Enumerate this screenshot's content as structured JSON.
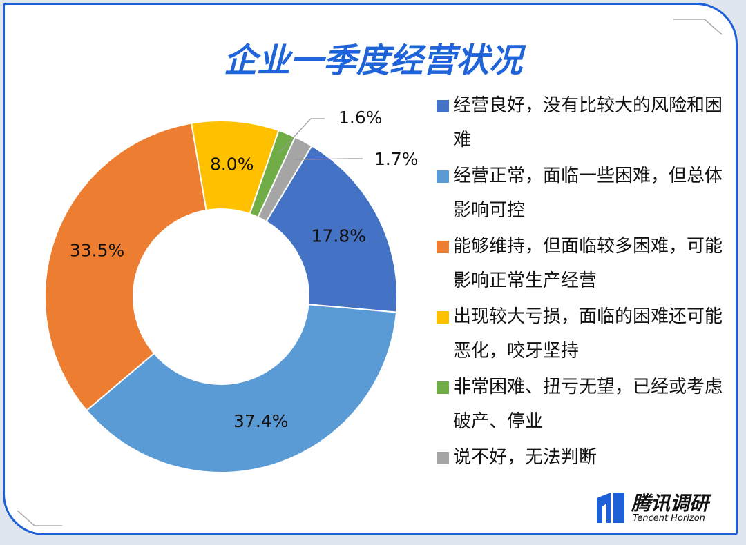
{
  "chart_data": {
    "type": "donut",
    "title": "企业一季度经营状况",
    "categories": [
      "经营良好，没有比较大的风险和困难",
      "经营正常，面临一些困难，但总体影响可控",
      "能够维持，但面临较多困难，可能影响正常生产经营",
      "出现较大亏损，面临的困难还可能恶化，咬牙坚持",
      "非常困难、扭亏无望，已经或考虑破产、停业",
      "说不好，无法判断"
    ],
    "values": [
      17.8,
      37.4,
      33.5,
      8.0,
      1.6,
      1.7
    ],
    "value_labels": [
      "17.8%",
      "37.4%",
      "33.5%",
      "8.0%",
      "1.6%",
      "1.7%"
    ],
    "colors": [
      "#4472c4",
      "#5b9bd5",
      "#ed7d31",
      "#ffc000",
      "#70ad47",
      "#a5a5a5"
    ],
    "legend": "right"
  },
  "branding": {
    "name": "腾讯调研",
    "subtitle": "Tencent Horizon"
  }
}
